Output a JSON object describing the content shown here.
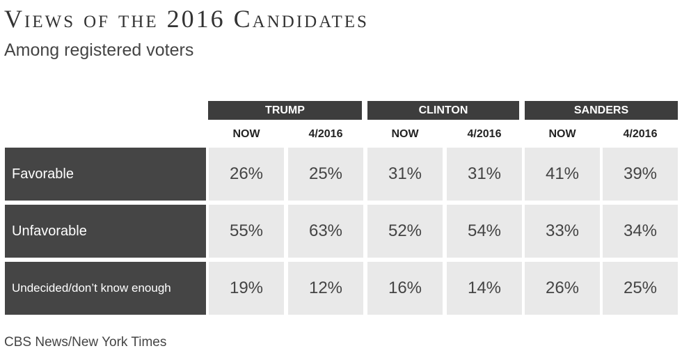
{
  "title": "Views of the 2016 Candidates",
  "subtitle": "Among registered voters",
  "source": "CBS News/New York Times",
  "chart_data": {
    "type": "table",
    "candidates": [
      "TRUMP",
      "CLINTON",
      "SANDERS"
    ],
    "column_headers": [
      "NOW",
      "4/2016",
      "NOW",
      "4/2016",
      "NOW",
      "4/2016"
    ],
    "rows": [
      {
        "label": "Favorable",
        "values": [
          "26%",
          "25%",
          "31%",
          "31%",
          "41%",
          "39%"
        ]
      },
      {
        "label": "Unfavorable",
        "values": [
          "55%",
          "63%",
          "52%",
          "54%",
          "33%",
          "34%"
        ]
      },
      {
        "label": "Undecided/don’t know enough",
        "values": [
          "19%",
          "12%",
          "16%",
          "14%",
          "26%",
          "25%"
        ]
      }
    ]
  }
}
